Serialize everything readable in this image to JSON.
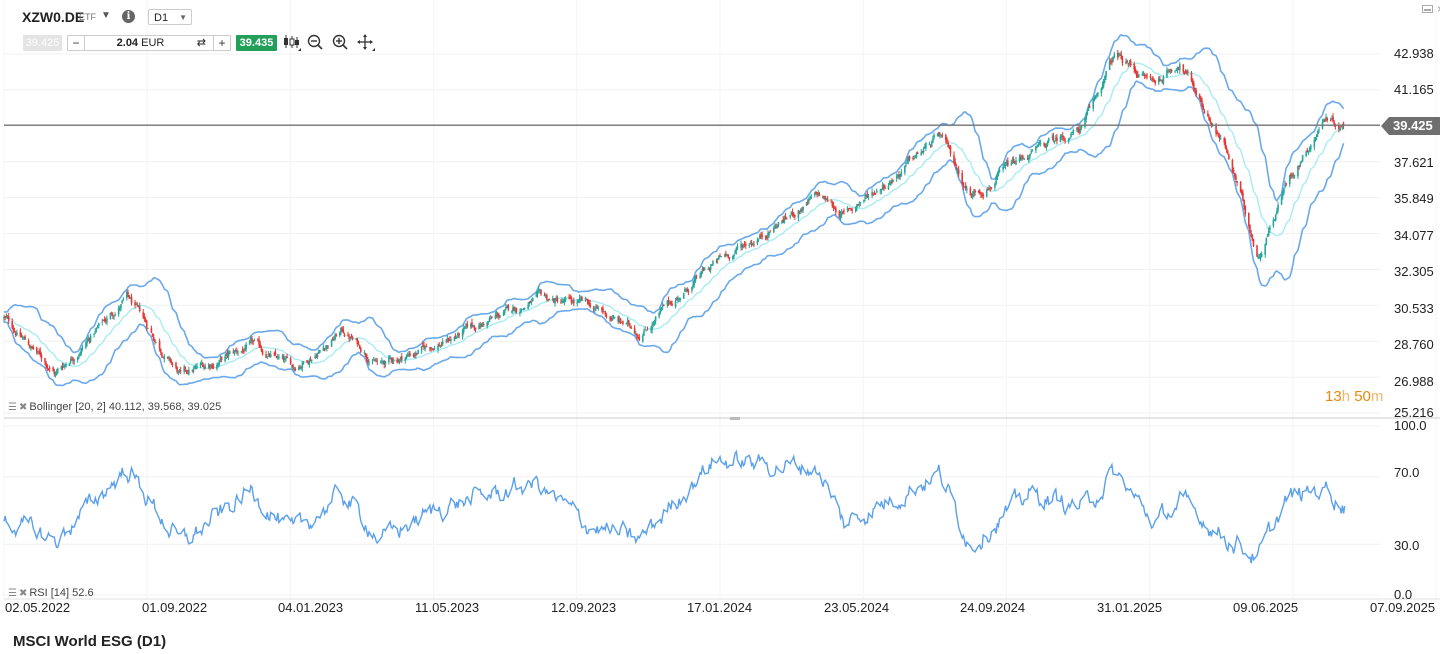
{
  "toolbar": {
    "symbol": "XZW0.DE",
    "type": "ETF",
    "timeframe": "D1",
    "bid": "39.425",
    "ask": "39.435",
    "quantity": "2.04",
    "currency": "EUR",
    "minus_label": "−",
    "plus_label": "+",
    "swap_icon": "swap-icon",
    "tools": [
      "candlestick-type-icon",
      "zoom-out-icon",
      "zoom-in-icon",
      "move-icon"
    ]
  },
  "window": {
    "close_label": "×"
  },
  "price_axis": [
    "42.938",
    "41.165",
    "39.425",
    "37.621",
    "35.849",
    "34.077",
    "32.305",
    "30.533",
    "28.760",
    "26.988",
    "25.216"
  ],
  "rsi_axis": [
    "100.0",
    "70.0",
    "30.0",
    "0.0"
  ],
  "date_axis": [
    "02.05.2022",
    "01.09.2022",
    "04.01.2023",
    "11.05.2023",
    "12.09.2023",
    "17.01.2024",
    "23.05.2024",
    "24.09.2024",
    "31.01.2025",
    "09.06.2025",
    "07.09.2025"
  ],
  "current_price": "39.425",
  "bollinger_legend": "Bollinger [20, 2] 40.112, 39.568, 39.025",
  "rsi_legend": "RSI [14] 52.6",
  "countdown": {
    "hours": "13",
    "h_unit": "h",
    "minutes": "50",
    "m_unit": "m"
  },
  "footer_title": "MSCI World ESG (D1)",
  "colors": {
    "up": "#26a69a",
    "down": "#e53935",
    "band": "#6aa9ec",
    "middle": "#a8ecf2",
    "rsi": "#5aa0ea",
    "price_line": "#757575",
    "ask": "#22a05a"
  },
  "chart_data": {
    "type": "candlestick",
    "x_range": [
      "2022-05-02",
      "2025-09-07"
    ],
    "price_ylim": [
      25.216,
      42.938
    ],
    "rsi_ylim": [
      0,
      100
    ],
    "close_anchors": [
      [
        "2022-05-02",
        29.9
      ],
      [
        "2022-06-15",
        27.2
      ],
      [
        "2022-08-15",
        30.9
      ],
      [
        "2022-09-30",
        27.0
      ],
      [
        "2022-11-30",
        28.5
      ],
      [
        "2023-01-04",
        27.4
      ],
      [
        "2023-02-15",
        29.3
      ],
      [
        "2023-03-20",
        27.6
      ],
      [
        "2023-05-11",
        28.7
      ],
      [
        "2023-07-31",
        30.8
      ],
      [
        "2023-09-12",
        30.5
      ],
      [
        "2023-10-27",
        29.2
      ],
      [
        "2023-12-29",
        32.5
      ],
      [
        "2024-03-28",
        35.9
      ],
      [
        "2024-04-19",
        35.0
      ],
      [
        "2024-07-10",
        38.8
      ],
      [
        "2024-08-05",
        36.0
      ],
      [
        "2024-09-24",
        37.9
      ],
      [
        "2024-11-10",
        39.4
      ],
      [
        "2024-12-06",
        42.8
      ],
      [
        "2025-01-10",
        41.5
      ],
      [
        "2025-01-31",
        42.6
      ],
      [
        "2025-03-10",
        38.5
      ],
      [
        "2025-04-08",
        33.0
      ],
      [
        "2025-05-02",
        36.6
      ],
      [
        "2025-06-05",
        39.9
      ],
      [
        "2025-06-20",
        39.425
      ]
    ],
    "rsi_anchors": [
      [
        "2022-05-02",
        45
      ],
      [
        "2022-06-15",
        32
      ],
      [
        "2022-08-15",
        75
      ],
      [
        "2022-09-30",
        30
      ],
      [
        "2022-11-30",
        62
      ],
      [
        "2023-01-04",
        36
      ],
      [
        "2023-02-15",
        60
      ],
      [
        "2023-03-20",
        33
      ],
      [
        "2023-05-11",
        52
      ],
      [
        "2023-07-31",
        66
      ],
      [
        "2023-09-12",
        42
      ],
      [
        "2023-10-27",
        32
      ],
      [
        "2023-12-29",
        80
      ],
      [
        "2024-03-28",
        75
      ],
      [
        "2024-04-19",
        42
      ],
      [
        "2024-07-10",
        72
      ],
      [
        "2024-08-05",
        30
      ],
      [
        "2024-09-24",
        60
      ],
      [
        "2024-11-10",
        52
      ],
      [
        "2024-12-06",
        72
      ],
      [
        "2025-01-10",
        42
      ],
      [
        "2025-01-31",
        55
      ],
      [
        "2025-03-10",
        35
      ],
      [
        "2025-04-08",
        22
      ],
      [
        "2025-05-02",
        56
      ],
      [
        "2025-06-05",
        64
      ],
      [
        "2025-06-20",
        52.6
      ]
    ],
    "bollinger": {
      "period": 20,
      "stddev": 2,
      "upper": 40.112,
      "middle": 39.568,
      "lower": 39.025
    },
    "rsi": {
      "period": 14,
      "last": 52.6
    }
  }
}
